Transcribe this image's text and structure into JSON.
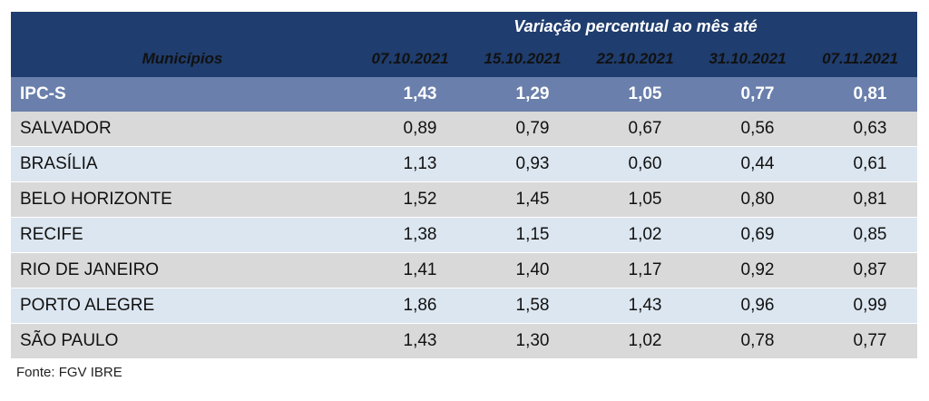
{
  "header": {
    "span_title": "Variação percentual ao mês até",
    "col0": "Municípios",
    "dates": [
      "07.10.2021",
      "15.10.2021",
      "22.10.2021",
      "31.10.2021",
      "07.11.2021"
    ]
  },
  "rows": [
    {
      "name": "IPC-S",
      "values": [
        "1,43",
        "1,29",
        "1,05",
        "0,77",
        "0,81"
      ]
    },
    {
      "name": "SALVADOR",
      "values": [
        "0,89",
        "0,79",
        "0,67",
        "0,56",
        "0,63"
      ]
    },
    {
      "name": "BRASÍLIA",
      "values": [
        "1,13",
        "0,93",
        "0,60",
        "0,44",
        "0,61"
      ]
    },
    {
      "name": "BELO HORIZONTE",
      "values": [
        "1,52",
        "1,45",
        "1,05",
        "0,80",
        "0,81"
      ]
    },
    {
      "name": "RECIFE",
      "values": [
        "1,38",
        "1,15",
        "1,02",
        "0,69",
        "0,85"
      ]
    },
    {
      "name": "RIO DE JANEIRO",
      "values": [
        "1,41",
        "1,40",
        "1,17",
        "0,92",
        "0,87"
      ]
    },
    {
      "name": "PORTO ALEGRE",
      "values": [
        "1,86",
        "1,58",
        "1,43",
        "0,96",
        "0,99"
      ]
    },
    {
      "name": "SÃO PAULO",
      "values": [
        "1,43",
        "1,30",
        "1,02",
        "0,78",
        "0,77"
      ]
    }
  ],
  "colors": {
    "header": "#1f3d6e",
    "highlight": "#6a7fab",
    "row_gray": "#d9d9d9",
    "row_blue": "#dce6f0"
  },
  "footer": {
    "source": "Fonte: FGV IBRE"
  }
}
